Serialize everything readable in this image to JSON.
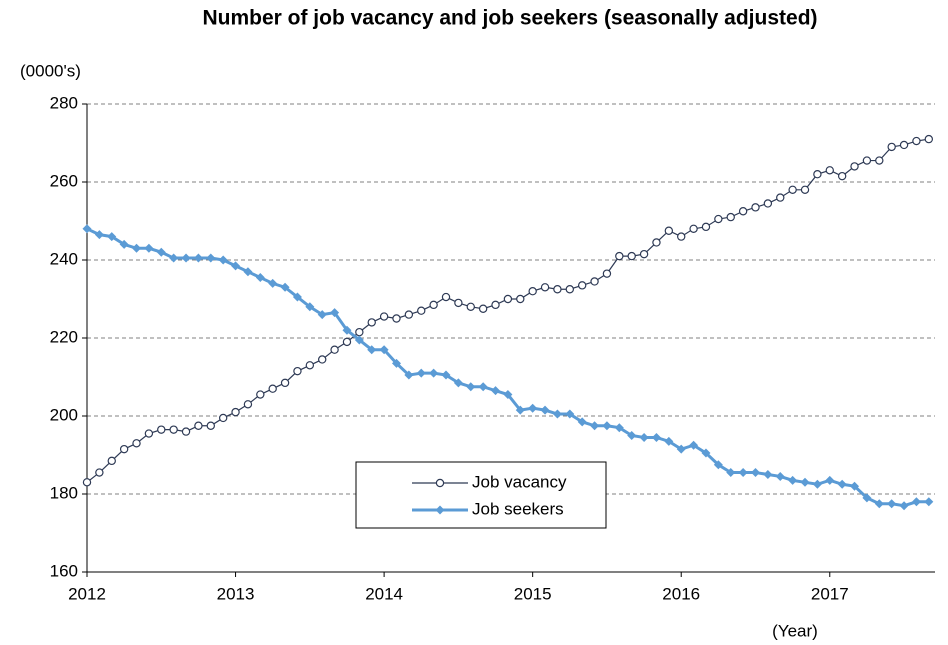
{
  "chart_data": {
    "type": "line",
    "title": "Number of job vacancy and job seekers (seasonally adjusted)",
    "y_label": "(0000's)",
    "x_label": "(Year)",
    "categories": [
      "2012",
      null,
      null,
      null,
      null,
      null,
      null,
      null,
      null,
      null,
      null,
      null,
      "2013",
      null,
      null,
      null,
      null,
      null,
      null,
      null,
      null,
      null,
      null,
      null,
      "2014",
      null,
      null,
      null,
      null,
      null,
      null,
      null,
      null,
      null,
      null,
      null,
      "2015",
      null,
      null,
      null,
      null,
      null,
      null,
      null,
      null,
      null,
      null,
      null,
      "2016",
      null,
      null,
      null,
      null,
      null,
      null,
      null,
      null,
      null,
      null,
      null,
      "2017",
      null,
      null,
      null,
      null,
      null,
      null,
      null,
      null
    ],
    "series": [
      {
        "name": "Job vacancy",
        "color": "#2e3a55",
        "marker": "circle",
        "values": [
          183,
          185.5,
          188.5,
          191.5,
          193,
          195.5,
          196.5,
          196.5,
          196,
          197.5,
          197.5,
          199.5,
          201,
          203,
          205.5,
          207,
          208.5,
          211.5,
          213,
          214.5,
          217,
          219,
          221.5,
          224,
          225.5,
          225,
          226,
          227,
          228.5,
          230.5,
          229,
          228,
          227.5,
          228.5,
          230,
          230,
          232,
          233,
          232.5,
          232.5,
          233.5,
          234.5,
          236.5,
          241,
          241,
          241.5,
          244.5,
          247.5,
          246,
          248,
          248.5,
          250.5,
          251,
          252.5,
          253.5,
          254.5,
          256,
          258,
          258,
          262,
          263,
          261.5,
          264,
          265.5,
          265.5,
          269,
          269.5,
          270.5,
          271
        ]
      },
      {
        "name": "Job seekers",
        "color": "#5b9bd5",
        "marker": "diamond",
        "values": [
          248,
          246.5,
          246,
          244,
          243,
          243,
          242,
          240.5,
          240.5,
          240.5,
          240.5,
          240,
          238.5,
          237,
          235.5,
          234,
          233,
          230.5,
          228,
          226,
          226.5,
          222,
          219.5,
          217,
          217,
          213.5,
          210.5,
          211,
          211,
          210.5,
          208.5,
          207.5,
          207.5,
          206.5,
          205.5,
          201.5,
          202,
          201.5,
          200.5,
          200.5,
          198.5,
          197.5,
          197.5,
          197,
          195,
          194.5,
          194.5,
          193.5,
          191.5,
          192.5,
          190.5,
          187.5,
          185.5,
          185.5,
          185.5,
          185,
          184.5,
          183.5,
          183,
          182.5,
          183.5,
          182.5,
          182,
          179,
          177.5,
          177.5,
          177,
          178,
          178
        ]
      }
    ],
    "ylim": [
      160,
      280
    ],
    "yticks": [
      160,
      180,
      200,
      220,
      240,
      260,
      280
    ],
    "grid": true,
    "legend": "bottom-center"
  }
}
